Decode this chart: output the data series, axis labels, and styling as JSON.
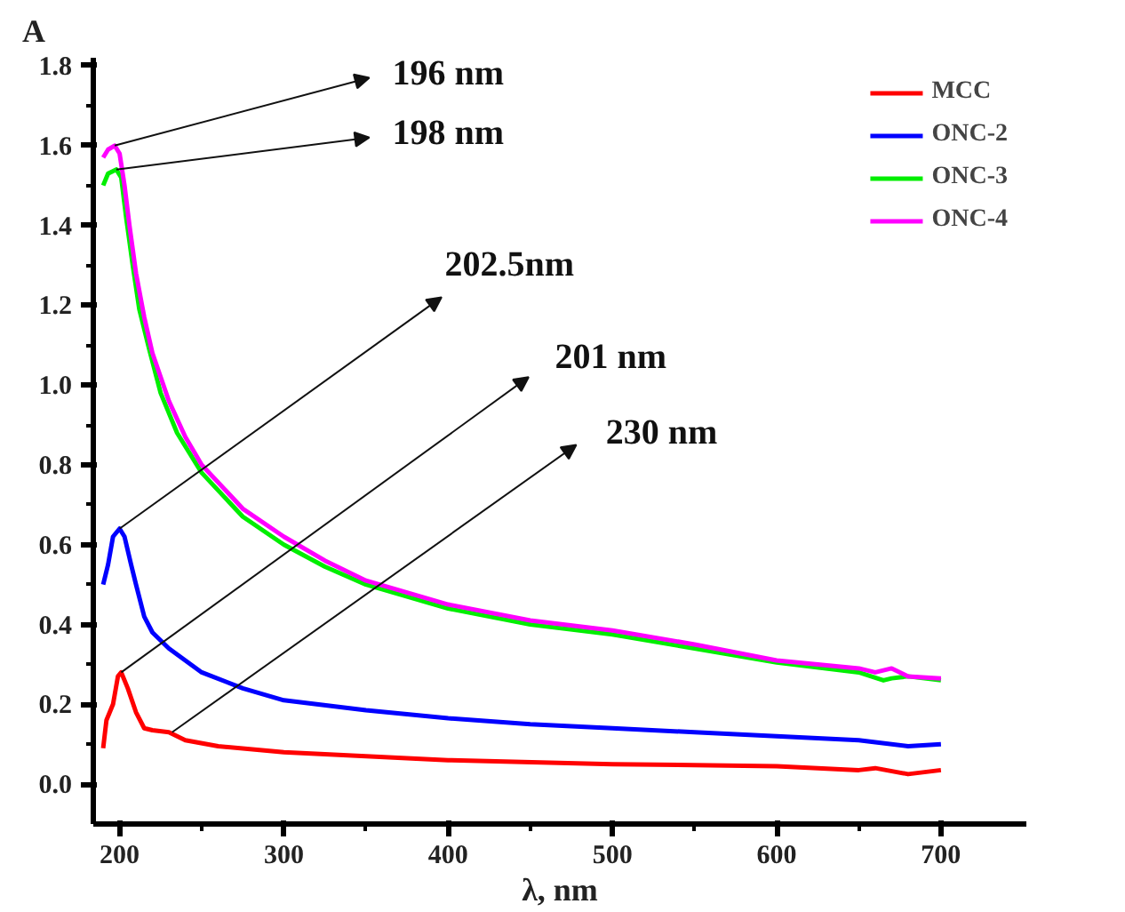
{
  "chart_data": {
    "type": "line",
    "xlabel": "λ, nm",
    "ylabel": "A",
    "xlim": [
      184,
      752
    ],
    "ylim": [
      -0.1,
      1.82
    ],
    "xticks": [
      200,
      300,
      400,
      500,
      600,
      700
    ],
    "yticks": [
      {
        "value": 0,
        "label": "0.0"
      },
      0.2,
      0.4,
      0.6,
      0.8,
      {
        "value": 1,
        "label": "1.0"
      },
      1.2,
      1.4,
      1.6,
      1.8
    ],
    "grid": false,
    "legend": "top right",
    "marker": "none",
    "line_style": "solid",
    "series": [
      {
        "name": "MCC",
        "color": "#ff0000",
        "x": [
          190,
          192,
          196,
          199,
          201,
          205,
          210,
          215,
          220,
          230,
          240,
          260,
          300,
          350,
          400,
          500,
          600,
          650,
          660,
          680,
          700
        ],
        "values": [
          0.09,
          0.16,
          0.2,
          0.27,
          0.28,
          0.24,
          0.18,
          0.14,
          0.135,
          0.13,
          0.11,
          0.095,
          0.08,
          0.07,
          0.06,
          0.05,
          0.045,
          0.035,
          0.04,
          0.025,
          0.035
        ]
      },
      {
        "name": "ONC-2",
        "color": "#0000ff",
        "x": [
          190,
          193,
          196,
          200,
          203,
          207,
          210,
          215,
          220,
          230,
          250,
          275,
          300,
          350,
          400,
          450,
          500,
          550,
          600,
          650,
          680,
          700
        ],
        "values": [
          0.5,
          0.55,
          0.62,
          0.64,
          0.62,
          0.55,
          0.5,
          0.42,
          0.38,
          0.34,
          0.28,
          0.24,
          0.21,
          0.185,
          0.165,
          0.15,
          0.14,
          0.13,
          0.12,
          0.11,
          0.095,
          0.1
        ]
      },
      {
        "name": "ONC-3",
        "color": "#00ee00",
        "x": [
          190,
          193,
          198,
          201,
          204,
          208,
          212,
          218,
          225,
          235,
          250,
          275,
          300,
          325,
          350,
          400,
          450,
          500,
          550,
          600,
          650,
          665,
          670,
          680,
          700
        ],
        "values": [
          1.5,
          1.53,
          1.54,
          1.52,
          1.42,
          1.3,
          1.19,
          1.09,
          0.98,
          0.88,
          0.78,
          0.67,
          0.6,
          0.545,
          0.5,
          0.44,
          0.4,
          0.375,
          0.34,
          0.305,
          0.28,
          0.26,
          0.265,
          0.27,
          0.26
        ]
      },
      {
        "name": "ONC-4",
        "color": "#ff00ff",
        "x": [
          190,
          193,
          197,
          200,
          203,
          206,
          210,
          215,
          220,
          230,
          240,
          250,
          275,
          300,
          325,
          350,
          400,
          450,
          500,
          550,
          600,
          650,
          660,
          670,
          680,
          700
        ],
        "values": [
          1.57,
          1.59,
          1.6,
          1.58,
          1.5,
          1.4,
          1.28,
          1.17,
          1.08,
          0.96,
          0.87,
          0.8,
          0.69,
          0.62,
          0.56,
          0.51,
          0.45,
          0.41,
          0.385,
          0.35,
          0.31,
          0.29,
          0.28,
          0.29,
          0.27,
          0.265
        ]
      }
    ],
    "annotations": [
      {
        "text": "196 nm",
        "x": 197,
        "y": 1.6
      },
      {
        "text": "198 nm",
        "x": 198,
        "y": 1.54
      },
      {
        "text": "202.5nm",
        "x": 200,
        "y": 0.64
      },
      {
        "text": "201 nm",
        "x": 201,
        "y": 0.28
      },
      {
        "text": "230 nm",
        "x": 232,
        "y": 0.13
      }
    ]
  }
}
